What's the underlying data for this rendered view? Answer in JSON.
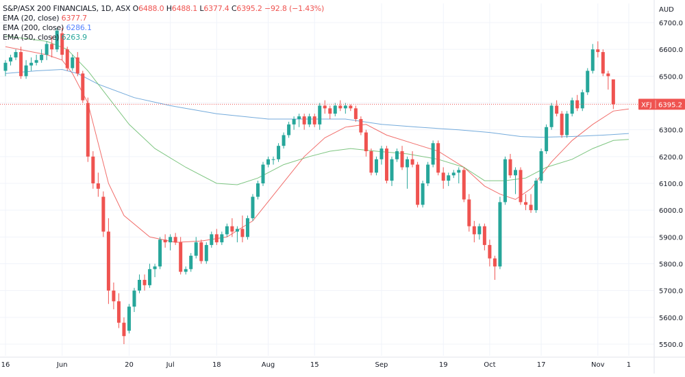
{
  "legend": {
    "title": "S&P/ASX 200 FINANCIALS, 1D, ASX",
    "o_label": "O",
    "o": "6488.0",
    "h_label": "H",
    "h": "6488.1",
    "l_label": "L",
    "l": "6377.4",
    "c_label": "C",
    "c": "6395.2",
    "change": "−92.8 (−1.43%)",
    "ema20_label": "EMA (20, close)",
    "ema20_value": "6377.7",
    "ema200_label": "EMA (200, close)",
    "ema200_value": "6286.1",
    "ema50_label": "EMA (50, close)",
    "ema50_value": "6263.9"
  },
  "colors": {
    "up": "#26a69a",
    "down": "#ef5350",
    "ema20": "#ef5350",
    "ema200": "#5b9bd5",
    "ema50": "#66bb6a",
    "grid": "#f0f3fa",
    "axis_text": "#131722",
    "price_line": "#ef5350"
  },
  "chart_data": {
    "type": "candlestick",
    "currency": "AUD",
    "price_label": {
      "symbol": "XFJ",
      "value": "6395.2"
    },
    "y_ticks": [
      5500,
      5600,
      5700,
      5800,
      5900,
      6000,
      6100,
      6200,
      6300,
      6400,
      6500,
      6600,
      6700
    ],
    "y_tick_labels": [
      "5500.0",
      "5600.0",
      "5700.0",
      "5800.0",
      "5900.0",
      "6000.0",
      "6100.0",
      "6200.0",
      "6300.0",
      "6400.0",
      "6500.0",
      "6600.0",
      "6700.0"
    ],
    "ylim": [
      5450,
      6750
    ],
    "x_ticks": [
      {
        "label": "16",
        "index": 0
      },
      {
        "label": "Jun",
        "index": 11
      },
      {
        "label": "20",
        "index": 24
      },
      {
        "label": "Jul",
        "index": 32
      },
      {
        "label": "18",
        "index": 41
      },
      {
        "label": "Aug",
        "index": 51
      },
      {
        "label": "15",
        "index": 60
      },
      {
        "label": "Sep",
        "index": 73
      },
      {
        "label": "19",
        "index": 85
      },
      {
        "label": "Oct",
        "index": 94
      },
      {
        "label": "17",
        "index": 104
      },
      {
        "label": "Nov",
        "index": 115
      },
      {
        "label": "1",
        "index": 121
      }
    ],
    "x_count": 122,
    "candles": [
      [
        6520,
        6560,
        6500,
        6550
      ],
      [
        6555,
        6580,
        6540,
        6570
      ],
      [
        6570,
        6600,
        6560,
        6590
      ],
      [
        6590,
        6610,
        6490,
        6500
      ],
      [
        6500,
        6560,
        6490,
        6540
      ],
      [
        6540,
        6570,
        6520,
        6550
      ],
      [
        6550,
        6580,
        6540,
        6560
      ],
      [
        6560,
        6600,
        6550,
        6580
      ],
      [
        6580,
        6630,
        6560,
        6620
      ],
      [
        6620,
        6650,
        6570,
        6600
      ],
      [
        6600,
        6680,
        6590,
        6670
      ],
      [
        6660,
        6680,
        6560,
        6580
      ],
      [
        6600,
        6610,
        6520,
        6530
      ],
      [
        6530,
        6580,
        6520,
        6570
      ],
      [
        6570,
        6590,
        6500,
        6510
      ],
      [
        6510,
        6520,
        6400,
        6410
      ],
      [
        6400,
        6420,
        6180,
        6200
      ],
      [
        6200,
        6220,
        6080,
        6100
      ],
      [
        6100,
        6140,
        6050,
        6080
      ],
      [
        6050,
        6070,
        5900,
        5920
      ],
      [
        5920,
        5970,
        5650,
        5700
      ],
      [
        5700,
        5730,
        5630,
        5660
      ],
      [
        5660,
        5690,
        5560,
        5580
      ],
      [
        5580,
        5600,
        5500,
        5530
      ],
      [
        5550,
        5650,
        5540,
        5640
      ],
      [
        5640,
        5710,
        5620,
        5700
      ],
      [
        5700,
        5760,
        5690,
        5740
      ],
      [
        5740,
        5760,
        5700,
        5720
      ],
      [
        5720,
        5800,
        5710,
        5780
      ],
      [
        5780,
        5800,
        5750,
        5790
      ],
      [
        5790,
        5900,
        5780,
        5890
      ],
      [
        5890,
        5910,
        5860,
        5880
      ],
      [
        5880,
        5910,
        5850,
        5900
      ],
      [
        5900,
        5915,
        5870,
        5880
      ],
      [
        5880,
        5900,
        5760,
        5770
      ],
      [
        5770,
        5790,
        5760,
        5780
      ],
      [
        5780,
        5840,
        5770,
        5830
      ],
      [
        5830,
        5900,
        5820,
        5880
      ],
      [
        5880,
        5890,
        5800,
        5810
      ],
      [
        5810,
        5880,
        5800,
        5870
      ],
      [
        5870,
        5920,
        5860,
        5910
      ],
      [
        5910,
        5930,
        5870,
        5880
      ],
      [
        5880,
        5920,
        5870,
        5910
      ],
      [
        5910,
        5950,
        5900,
        5940
      ],
      [
        5940,
        5970,
        5900,
        5920
      ],
      [
        5920,
        5940,
        5880,
        5930
      ],
      [
        5930,
        5980,
        5880,
        5900
      ],
      [
        5900,
        5980,
        5890,
        5970
      ],
      [
        5970,
        6060,
        5960,
        6050
      ],
      [
        6050,
        6110,
        6040,
        6100
      ],
      [
        6100,
        6180,
        6090,
        6170
      ],
      [
        6170,
        6200,
        6160,
        6190
      ],
      [
        6190,
        6200,
        6170,
        6190
      ],
      [
        6190,
        6250,
        6180,
        6240
      ],
      [
        6240,
        6290,
        6230,
        6280
      ],
      [
        6280,
        6330,
        6270,
        6320
      ],
      [
        6320,
        6350,
        6300,
        6340
      ],
      [
        6340,
        6360,
        6310,
        6350
      ],
      [
        6350,
        6360,
        6300,
        6320
      ],
      [
        6320,
        6360,
        6310,
        6350
      ],
      [
        6350,
        6360,
        6310,
        6320
      ],
      [
        6320,
        6400,
        6300,
        6390
      ],
      [
        6390,
        6410,
        6360,
        6380
      ],
      [
        6380,
        6390,
        6340,
        6360
      ],
      [
        6360,
        6400,
        6350,
        6390
      ],
      [
        6390,
        6410,
        6370,
        6380
      ],
      [
        6380,
        6400,
        6360,
        6390
      ],
      [
        6390,
        6395,
        6370,
        6380
      ],
      [
        6380,
        6390,
        6330,
        6340
      ],
      [
        6340,
        6350,
        6280,
        6290
      ],
      [
        6290,
        6300,
        6200,
        6220
      ],
      [
        6220,
        6230,
        6130,
        6140
      ],
      [
        6140,
        6200,
        6130,
        6190
      ],
      [
        6190,
        6240,
        6170,
        6230
      ],
      [
        6230,
        6240,
        6100,
        6110
      ],
      [
        6110,
        6200,
        6090,
        6190
      ],
      [
        6190,
        6230,
        6180,
        6220
      ],
      [
        6220,
        6240,
        6150,
        6160
      ],
      [
        6160,
        6200,
        6080,
        6190
      ],
      [
        6190,
        6220,
        6160,
        6170
      ],
      [
        6170,
        6180,
        6010,
        6020
      ],
      [
        6020,
        6110,
        6010,
        6100
      ],
      [
        6100,
        6180,
        6090,
        6170
      ],
      [
        6170,
        6260,
        6160,
        6250
      ],
      [
        6250,
        6260,
        6130,
        6140
      ],
      [
        6140,
        6160,
        6080,
        6110
      ],
      [
        6110,
        6140,
        6090,
        6130
      ],
      [
        6130,
        6150,
        6120,
        6140
      ],
      [
        6140,
        6160,
        6100,
        6150
      ],
      [
        6150,
        6160,
        6030,
        6040
      ],
      [
        6040,
        6060,
        5920,
        5940
      ],
      [
        5940,
        5960,
        5880,
        5910
      ],
      [
        5910,
        5950,
        5890,
        5940
      ],
      [
        5940,
        5950,
        5850,
        5870
      ],
      [
        5870,
        5890,
        5790,
        5820
      ],
      [
        5820,
        5830,
        5740,
        5790
      ],
      [
        5790,
        6050,
        5780,
        6030
      ],
      [
        6030,
        6200,
        6020,
        6190
      ],
      [
        6190,
        6210,
        6120,
        6130
      ],
      [
        6130,
        6160,
        6060,
        6150
      ],
      [
        6150,
        6160,
        6020,
        6030
      ],
      [
        6030,
        6060,
        6000,
        6020
      ],
      [
        6020,
        6060,
        5990,
        6000
      ],
      [
        6000,
        6120,
        5990,
        6110
      ],
      [
        6110,
        6230,
        6100,
        6220
      ],
      [
        6220,
        6320,
        6210,
        6310
      ],
      [
        6310,
        6400,
        6300,
        6390
      ],
      [
        6390,
        6410,
        6350,
        6360
      ],
      [
        6360,
        6370,
        6270,
        6280
      ],
      [
        6280,
        6370,
        6270,
        6360
      ],
      [
        6360,
        6420,
        6350,
        6410
      ],
      [
        6410,
        6430,
        6370,
        6380
      ],
      [
        6380,
        6450,
        6370,
        6440
      ],
      [
        6440,
        6530,
        6430,
        6520
      ],
      [
        6520,
        6620,
        6510,
        6600
      ],
      [
        6600,
        6630,
        6570,
        6590
      ],
      [
        6590,
        6600,
        6500,
        6510
      ],
      [
        6510,
        6520,
        6450,
        6500
      ],
      [
        6488,
        6488.1,
        6377.4,
        6395.2
      ]
    ],
    "series": [
      {
        "name": "EMA (20, close)",
        "values": [
          [
            0,
            6610
          ],
          [
            8,
            6580
          ],
          [
            11,
            6560
          ],
          [
            13,
            6510
          ],
          [
            16,
            6400
          ],
          [
            20,
            6100
          ],
          [
            23,
            5980
          ],
          [
            28,
            5900
          ],
          [
            33,
            5880
          ],
          [
            38,
            5885
          ],
          [
            43,
            5900
          ],
          [
            48,
            5960
          ],
          [
            53,
            6080
          ],
          [
            58,
            6200
          ],
          [
            62,
            6270
          ],
          [
            66,
            6310
          ],
          [
            70,
            6320
          ],
          [
            74,
            6280
          ],
          [
            79,
            6250
          ],
          [
            84,
            6220
          ],
          [
            89,
            6160
          ],
          [
            93,
            6090
          ],
          [
            96,
            6060
          ],
          [
            99,
            6040
          ],
          [
            102,
            6080
          ],
          [
            106,
            6180
          ],
          [
            110,
            6260
          ],
          [
            114,
            6320
          ],
          [
            118,
            6370
          ],
          [
            121,
            6377.7
          ]
        ]
      },
      {
        "name": "EMA (200, close)",
        "values": [
          [
            0,
            6510
          ],
          [
            6,
            6520
          ],
          [
            11,
            6525
          ],
          [
            14,
            6510
          ],
          [
            18,
            6470
          ],
          [
            25,
            6420
          ],
          [
            32,
            6390
          ],
          [
            41,
            6360
          ],
          [
            51,
            6340
          ],
          [
            60,
            6340
          ],
          [
            66,
            6340
          ],
          [
            73,
            6320
          ],
          [
            80,
            6310
          ],
          [
            88,
            6300
          ],
          [
            94,
            6290
          ],
          [
            100,
            6275
          ],
          [
            104,
            6272
          ],
          [
            110,
            6275
          ],
          [
            116,
            6280
          ],
          [
            121,
            6286.1
          ]
        ]
      },
      {
        "name": "EMA (50, close)",
        "values": [
          [
            0,
            6650
          ],
          [
            8,
            6630
          ],
          [
            12,
            6600
          ],
          [
            16,
            6520
          ],
          [
            20,
            6420
          ],
          [
            24,
            6320
          ],
          [
            29,
            6230
          ],
          [
            35,
            6160
          ],
          [
            41,
            6100
          ],
          [
            45,
            6095
          ],
          [
            49,
            6120
          ],
          [
            54,
            6170
          ],
          [
            59,
            6200
          ],
          [
            63,
            6220
          ],
          [
            67,
            6230
          ],
          [
            72,
            6220
          ],
          [
            78,
            6210
          ],
          [
            84,
            6190
          ],
          [
            89,
            6160
          ],
          [
            93,
            6110
          ],
          [
            97,
            6110
          ],
          [
            101,
            6120
          ],
          [
            105,
            6160
          ],
          [
            110,
            6190
          ],
          [
            114,
            6230
          ],
          [
            118,
            6260
          ],
          [
            121,
            6263.9
          ]
        ]
      }
    ]
  }
}
